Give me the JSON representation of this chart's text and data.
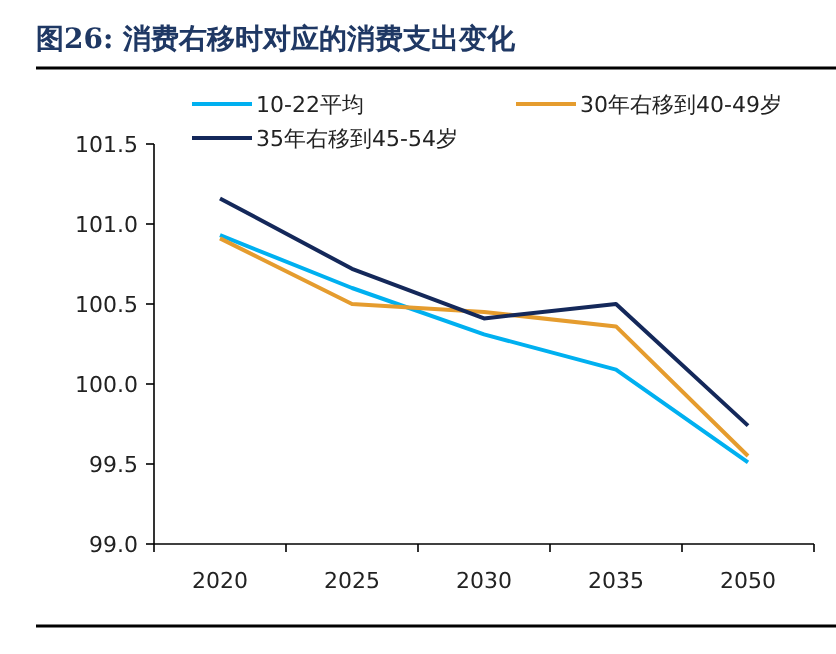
{
  "chart_data": {
    "type": "line",
    "title": "图26:  消费右移时对应的消费支出变化",
    "categories": [
      "2020",
      "2025",
      "2030",
      "2035",
      "2050"
    ],
    "series": [
      {
        "name": "10-22平均",
        "color": "#00b0f0",
        "values": [
          100.93,
          100.6,
          100.31,
          100.09,
          99.51
        ]
      },
      {
        "name": "30年右移到40-49岁",
        "color": "#e59c2e",
        "values": [
          100.91,
          100.5,
          100.45,
          100.36,
          99.55
        ]
      },
      {
        "name": "35年右移到45-54岁",
        "color": "#14285a",
        "values": [
          101.16,
          100.72,
          100.41,
          100.5,
          99.74
        ]
      }
    ],
    "ylim": [
      99.0,
      101.5
    ],
    "yticks": [
      {
        "value": 99.0,
        "label": "99.0"
      },
      {
        "value": 99.5,
        "label": "99.5"
      },
      {
        "value": 100.0,
        "label": "100.0"
      },
      {
        "value": 100.5,
        "label": "100.5"
      },
      {
        "value": 101.0,
        "label": "101.0"
      },
      {
        "value": 101.5,
        "label": "101.5"
      }
    ],
    "grid": false,
    "legend": "top",
    "marker": "none",
    "line_style": "solid"
  }
}
